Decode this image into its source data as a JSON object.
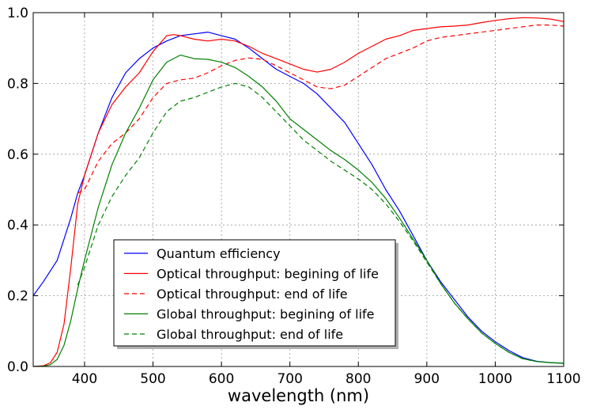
{
  "chart_data": {
    "type": "line",
    "xlabel": "wavelength (nm)",
    "ylabel": "",
    "xlim": [
      325,
      1100
    ],
    "ylim": [
      0.0,
      1.0
    ],
    "xticks": [
      400,
      500,
      600,
      700,
      800,
      900,
      1000,
      1100
    ],
    "yticks": [
      0.0,
      0.2,
      0.4,
      0.6,
      0.8,
      1.0
    ],
    "xtick_labels": [
      "400",
      "500",
      "600",
      "700",
      "800",
      "900",
      "1000",
      "1100"
    ],
    "ytick_labels": [
      "0.0",
      "0.2",
      "0.4",
      "0.6",
      "0.8",
      "1.0"
    ],
    "grid": true,
    "legend_position": "lower-left",
    "series": [
      {
        "name": "Quantum efficiency",
        "color": "#0000ff",
        "style": "solid",
        "x": [
          325,
          340,
          360,
          370,
          380,
          390,
          400,
          420,
          440,
          460,
          480,
          500,
          520,
          540,
          560,
          580,
          600,
          620,
          640,
          660,
          680,
          700,
          720,
          740,
          760,
          780,
          800,
          820,
          840,
          860,
          880,
          900,
          920,
          940,
          960,
          980,
          1000,
          1020,
          1040,
          1060,
          1080,
          1100
        ],
        "y": [
          0.2,
          0.24,
          0.3,
          0.36,
          0.42,
          0.49,
          0.54,
          0.66,
          0.76,
          0.83,
          0.87,
          0.9,
          0.92,
          0.935,
          0.94,
          0.945,
          0.935,
          0.925,
          0.9,
          0.87,
          0.84,
          0.82,
          0.8,
          0.77,
          0.73,
          0.69,
          0.63,
          0.57,
          0.5,
          0.44,
          0.37,
          0.3,
          0.24,
          0.19,
          0.14,
          0.1,
          0.07,
          0.045,
          0.025,
          0.015,
          0.011,
          0.009
        ]
      },
      {
        "name": "Optical throughput: begining of life",
        "color": "#ff0000",
        "style": "solid",
        "x": [
          325,
          340,
          350,
          360,
          370,
          380,
          390,
          400,
          420,
          440,
          460,
          480,
          500,
          520,
          530,
          540,
          560,
          580,
          600,
          620,
          640,
          660,
          680,
          700,
          720,
          740,
          760,
          780,
          800,
          820,
          840,
          860,
          880,
          900,
          920,
          940,
          960,
          980,
          1000,
          1020,
          1040,
          1060,
          1080,
          1100
        ],
        "y": [
          0.0,
          0.002,
          0.01,
          0.04,
          0.12,
          0.28,
          0.46,
          0.54,
          0.66,
          0.74,
          0.79,
          0.83,
          0.89,
          0.935,
          0.938,
          0.935,
          0.925,
          0.92,
          0.925,
          0.92,
          0.905,
          0.885,
          0.87,
          0.855,
          0.84,
          0.832,
          0.84,
          0.86,
          0.885,
          0.905,
          0.925,
          0.935,
          0.95,
          0.955,
          0.96,
          0.962,
          0.965,
          0.972,
          0.978,
          0.983,
          0.986,
          0.985,
          0.982,
          0.975
        ]
      },
      {
        "name": "Optical throughput: end of life",
        "color": "#ff0000",
        "style": "dashed",
        "x": [
          390,
          400,
          410,
          420,
          440,
          460,
          480,
          500,
          520,
          540,
          560,
          580,
          600,
          620,
          640,
          660,
          680,
          700,
          720,
          740,
          760,
          780,
          800,
          820,
          840,
          860,
          880,
          900,
          920,
          940,
          960,
          980,
          1000,
          1020,
          1040,
          1060,
          1080,
          1100
        ],
        "y": [
          0.49,
          0.5,
          0.54,
          0.58,
          0.63,
          0.66,
          0.7,
          0.76,
          0.8,
          0.81,
          0.815,
          0.83,
          0.85,
          0.865,
          0.872,
          0.868,
          0.85,
          0.83,
          0.81,
          0.79,
          0.785,
          0.795,
          0.82,
          0.845,
          0.87,
          0.885,
          0.9,
          0.92,
          0.93,
          0.935,
          0.94,
          0.945,
          0.95,
          0.955,
          0.96,
          0.965,
          0.965,
          0.962
        ]
      },
      {
        "name": "Global throughput: begining of life",
        "color": "#008000",
        "style": "solid",
        "x": [
          325,
          340,
          350,
          360,
          370,
          380,
          390,
          400,
          420,
          440,
          460,
          480,
          500,
          520,
          540,
          560,
          580,
          600,
          620,
          640,
          660,
          680,
          700,
          720,
          740,
          760,
          780,
          800,
          820,
          840,
          860,
          880,
          900,
          920,
          940,
          960,
          980,
          1000,
          1020,
          1040,
          1060,
          1080,
          1100
        ],
        "y": [
          0.0,
          0.001,
          0.005,
          0.02,
          0.06,
          0.13,
          0.22,
          0.3,
          0.45,
          0.57,
          0.66,
          0.73,
          0.81,
          0.86,
          0.88,
          0.87,
          0.868,
          0.86,
          0.845,
          0.82,
          0.79,
          0.75,
          0.7,
          0.67,
          0.64,
          0.61,
          0.585,
          0.555,
          0.52,
          0.475,
          0.42,
          0.36,
          0.3,
          0.235,
          0.18,
          0.135,
          0.095,
          0.065,
          0.04,
          0.022,
          0.014,
          0.011,
          0.009
        ]
      },
      {
        "name": "Global throughput: end of life",
        "color": "#008000",
        "style": "dashed",
        "x": [
          390,
          400,
          420,
          440,
          460,
          480,
          500,
          520,
          540,
          560,
          580,
          600,
          620,
          640,
          660,
          680,
          700,
          720,
          740,
          760,
          780,
          800,
          820,
          840,
          860,
          880,
          900,
          920,
          940,
          960,
          980,
          1000,
          1020,
          1040,
          1060,
          1080,
          1100
        ],
        "y": [
          0.23,
          0.28,
          0.4,
          0.48,
          0.54,
          0.59,
          0.66,
          0.72,
          0.75,
          0.76,
          0.775,
          0.79,
          0.8,
          0.79,
          0.76,
          0.72,
          0.68,
          0.64,
          0.61,
          0.58,
          0.555,
          0.53,
          0.5,
          0.46,
          0.41,
          0.355,
          0.295,
          0.235,
          0.18,
          0.135,
          0.095,
          0.065,
          0.04,
          0.022,
          0.014,
          0.011,
          0.009
        ]
      }
    ]
  }
}
